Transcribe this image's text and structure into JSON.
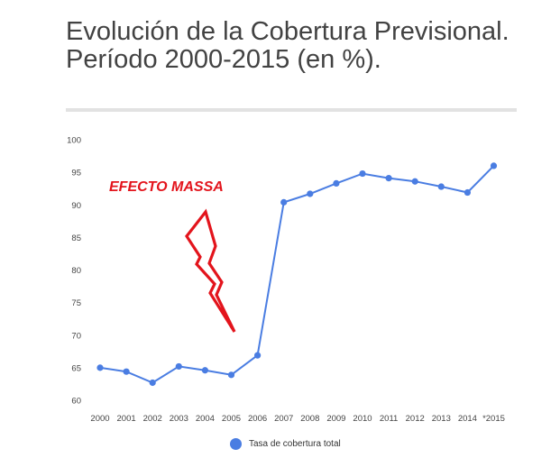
{
  "chart_data": {
    "type": "line",
    "title": "Evolución de la Cobertura Previsional. Período 2000-2015 (en %).",
    "categories": [
      "2000",
      "2001",
      "2002",
      "2003",
      "2004",
      "2005",
      "2006",
      "2007",
      "2008",
      "2009",
      "2010",
      "2011",
      "2012",
      "2013",
      "2014",
      "*2015"
    ],
    "series": [
      {
        "name": "Tasa de cobertura total",
        "values": [
          65.0,
          64.4,
          62.7,
          65.2,
          64.6,
          63.9,
          66.9,
          90.4,
          91.7,
          93.3,
          94.8,
          94.1,
          93.6,
          92.8,
          91.9,
          96.0
        ]
      }
    ],
    "yticks": [
      60,
      65,
      70,
      75,
      80,
      85,
      90,
      95,
      100
    ],
    "ylim": [
      60,
      100
    ],
    "legend_position": "bottom",
    "grid": false,
    "line_color": "#4a7de2",
    "annotation": {
      "text": "EFECTO MASSA",
      "color": "#e3141c",
      "shape": "lightning-bolt"
    }
  }
}
